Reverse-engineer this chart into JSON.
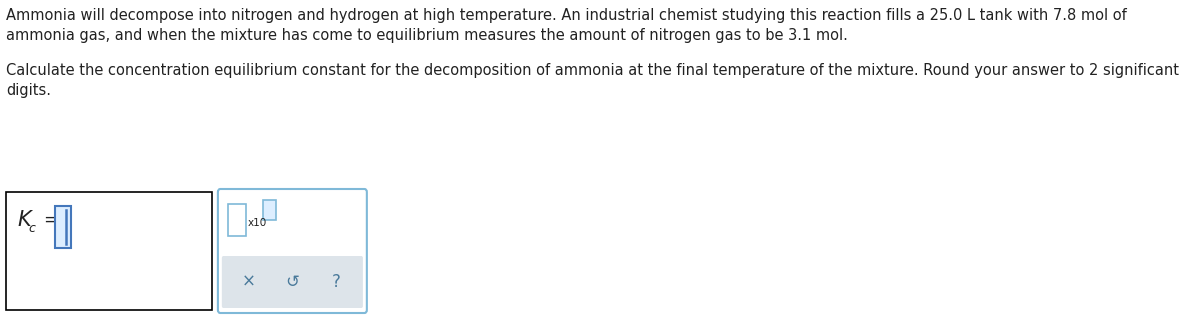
{
  "background_color": "#ffffff",
  "text_color": "#222222",
  "para1_line1": "Ammonia will decompose into nitrogen and hydrogen at high temperature. An industrial chemist studying this reaction fills a 25.0 L tank with 7.8 mol of",
  "para1_line2": "ammonia gas, and when the mixture has come to equilibrium measures the amount of nitrogen gas to be 3.1 mol.",
  "para2_line1": "Calculate the concentration equilibrium constant for the decomposition of ammonia at the final temperature of the mixture. Round your answer to 2 significant",
  "para2_line2": "digits.",
  "kc_letter": "K",
  "kc_sub": "c",
  "equals": "=",
  "x10_text": "x10",
  "toolbar_x": "×",
  "toolbar_undo": "↺",
  "toolbar_q": "?",
  "input_border": "#000000",
  "box2_border": "#7fb9d8",
  "input_fill": "#ddeeff",
  "cursor_color": "#4477bb",
  "small_box_border": "#7fb9d8",
  "small_box_fill": "#ffffff",
  "super_box_border": "#7fb9d8",
  "super_box_fill": "#ddeeff",
  "toolbar_bg": "#dde4ea",
  "toolbar_fg": "#4a7a9b",
  "font_size_body": 10.5,
  "font_size_kc": 15,
  "font_size_kcsub": 9,
  "font_size_eq": 13,
  "font_size_x10": 7.5,
  "font_size_toolbar": 12
}
